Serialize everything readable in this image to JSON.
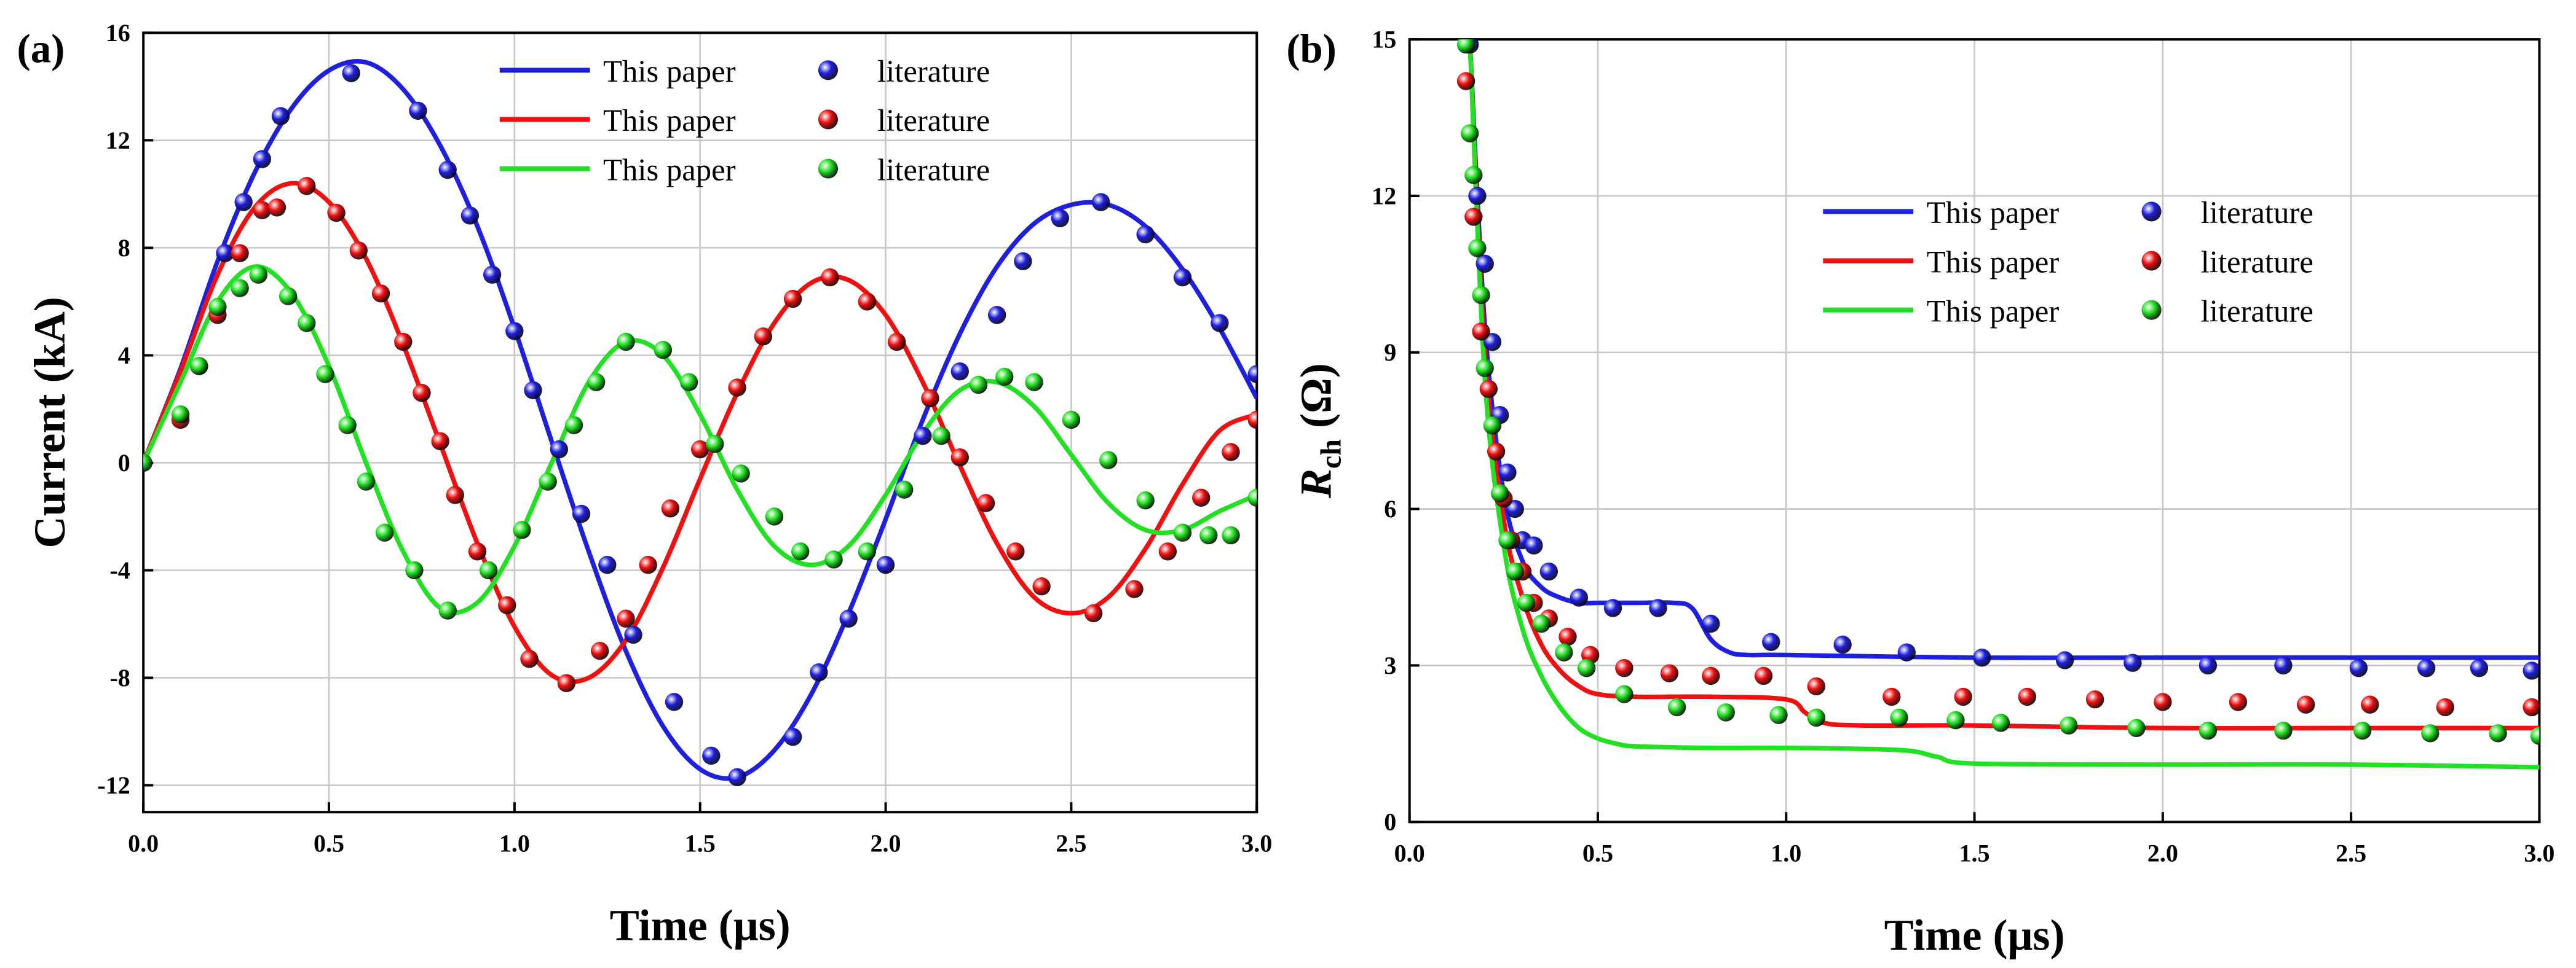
{
  "chart_data": [
    {
      "type": "line",
      "label": "(a)",
      "xlabel": "Time (μs)",
      "ylabel": [
        "Current (kA)"
      ],
      "xlim": [
        0,
        3
      ],
      "ylim": [
        -13,
        16
      ],
      "xticks": [
        {
          "value": 0,
          "label": "0.0"
        },
        {
          "value": 0.5,
          "label": "0.5"
        },
        {
          "value": 1,
          "label": "1.0"
        },
        {
          "value": 1.5,
          "label": "1.5"
        },
        {
          "value": 2,
          "label": "2.0"
        },
        {
          "value": 2.5,
          "label": "2.5"
        },
        {
          "value": 3,
          "label": "3.0"
        }
      ],
      "yticks": [
        -12,
        -8,
        -4,
        0,
        4,
        8,
        12,
        16
      ],
      "grid": true,
      "legend": "upper center",
      "series": [
        {
          "name": "This paper",
          "color": "#1f1fe0",
          "style": "line",
          "x": [
            0,
            0.1,
            0.2,
            0.3,
            0.4,
            0.5,
            0.6,
            0.7,
            0.8,
            0.9,
            1.0,
            1.1,
            1.2,
            1.3,
            1.4,
            1.5,
            1.6,
            1.7,
            1.8,
            1.9,
            2.0,
            2.1,
            2.2,
            2.3,
            2.4,
            2.5,
            2.6,
            2.7,
            2.8,
            2.9,
            3.0
          ],
          "values": [
            0,
            3.5,
            7.5,
            10.8,
            13.2,
            14.6,
            14.9,
            13.9,
            11.8,
            8.8,
            5.0,
            0.8,
            -3.3,
            -7.0,
            -9.8,
            -11.4,
            -11.7,
            -10.7,
            -8.6,
            -5.6,
            -2.1,
            1.6,
            4.8,
            7.3,
            8.9,
            9.6,
            9.6,
            8.8,
            7.2,
            5.0,
            2.4
          ]
        },
        {
          "name": "This paper",
          "color": "#f01010",
          "style": "line",
          "x": [
            0,
            0.1,
            0.2,
            0.3,
            0.4,
            0.5,
            0.6,
            0.7,
            0.8,
            0.9,
            1.0,
            1.1,
            1.2,
            1.3,
            1.4,
            1.5,
            1.6,
            1.7,
            1.8,
            1.9,
            2.0,
            2.1,
            2.2,
            2.3,
            2.4,
            2.5,
            2.6,
            2.7,
            2.8,
            2.9,
            3.0
          ],
          "values": [
            0,
            3.4,
            7.0,
            9.5,
            10.4,
            9.7,
            7.6,
            4.4,
            0.7,
            -3.0,
            -6.1,
            -7.9,
            -8.0,
            -6.6,
            -3.9,
            -0.6,
            2.6,
            5.2,
            6.7,
            6.8,
            5.5,
            3.0,
            -0.1,
            -3.0,
            -5.0,
            -5.6,
            -5.0,
            -3.2,
            -0.8,
            1.2,
            1.8
          ]
        },
        {
          "name": "This paper",
          "color": "#22e022",
          "style": "line",
          "x": [
            0,
            0.1,
            0.2,
            0.3,
            0.4,
            0.5,
            0.6,
            0.7,
            0.8,
            0.9,
            1.0,
            1.1,
            1.2,
            1.3,
            1.4,
            1.5,
            1.6,
            1.7,
            1.8,
            1.9,
            2.0,
            2.1,
            2.2,
            2.3,
            2.4,
            2.5,
            2.6,
            2.7,
            2.8,
            2.9,
            3.0
          ],
          "values": [
            0,
            3.0,
            6.0,
            7.3,
            6.3,
            3.6,
            0.0,
            -3.3,
            -5.4,
            -5.2,
            -3.1,
            0.0,
            3.0,
            4.5,
            4.0,
            1.8,
            -1.0,
            -3.1,
            -3.8,
            -3.1,
            -1.2,
            1.1,
            2.7,
            3.0,
            2.1,
            0.3,
            -1.5,
            -2.5,
            -2.5,
            -1.8,
            -1.2
          ]
        },
        {
          "name": "literature",
          "color": "#1f1fe0",
          "style": "markers",
          "x": [
            0.15,
            0.22,
            0.27,
            0.32,
            0.37,
            0.56,
            0.74,
            0.82,
            0.88,
            0.94,
            1.0,
            1.05,
            1.12,
            1.18,
            1.25,
            1.32,
            1.43,
            1.53,
            1.6,
            1.75,
            1.82,
            1.9,
            2.0,
            2.1,
            2.2,
            2.3,
            2.37,
            2.47,
            2.58,
            2.7,
            2.8,
            2.9,
            3.0
          ],
          "values": [
            3.6,
            7.8,
            9.7,
            11.3,
            12.9,
            14.5,
            13.1,
            10.9,
            9.2,
            7.0,
            4.9,
            2.7,
            0.5,
            -1.9,
            -3.8,
            -6.4,
            -8.9,
            -10.9,
            -11.7,
            -10.2,
            -7.8,
            -5.8,
            -3.8,
            1.0,
            3.4,
            5.5,
            7.5,
            9.1,
            9.7,
            8.5,
            6.9,
            5.2,
            3.3
          ]
        },
        {
          "name": "literature",
          "color": "#f01010",
          "style": "markers",
          "x": [
            0.1,
            0.15,
            0.2,
            0.26,
            0.32,
            0.36,
            0.44,
            0.52,
            0.58,
            0.64,
            0.7,
            0.75,
            0.8,
            0.84,
            0.9,
            0.98,
            1.04,
            1.14,
            1.23,
            1.3,
            1.36,
            1.42,
            1.5,
            1.6,
            1.67,
            1.75,
            1.85,
            1.95,
            2.03,
            2.12,
            2.2,
            2.27,
            2.35,
            2.42,
            2.56,
            2.67,
            2.76,
            2.85,
            2.93,
            3.0
          ],
          "values": [
            1.6,
            3.6,
            5.5,
            7.8,
            9.4,
            9.5,
            10.3,
            9.3,
            7.9,
            6.3,
            4.5,
            2.6,
            0.8,
            -1.2,
            -3.3,
            -5.3,
            -7.3,
            -8.2,
            -7.0,
            -5.8,
            -3.8,
            -1.7,
            0.5,
            2.8,
            4.7,
            6.1,
            6.9,
            6.0,
            4.5,
            2.4,
            0.2,
            -1.5,
            -3.3,
            -4.6,
            -5.6,
            -4.7,
            -3.3,
            -1.3,
            0.4,
            1.6
          ]
        },
        {
          "name": "literature",
          "color": "#22e022",
          "style": "markers",
          "x": [
            0,
            0.1,
            0.15,
            0.2,
            0.26,
            0.31,
            0.39,
            0.44,
            0.49,
            0.55,
            0.6,
            0.65,
            0.73,
            0.82,
            0.93,
            1.02,
            1.09,
            1.16,
            1.22,
            1.3,
            1.4,
            1.47,
            1.54,
            1.61,
            1.7,
            1.77,
            1.86,
            1.95,
            2.05,
            2.15,
            2.25,
            2.32,
            2.4,
            2.5,
            2.6,
            2.7,
            2.8,
            2.87,
            2.93,
            3.0
          ],
          "values": [
            0,
            1.8,
            3.6,
            5.8,
            6.5,
            7.0,
            6.2,
            5.2,
            3.3,
            1.4,
            -0.7,
            -2.6,
            -4.0,
            -5.5,
            -4.0,
            -2.5,
            -0.7,
            1.4,
            3.0,
            4.5,
            4.2,
            3.0,
            0.7,
            -0.4,
            -2.0,
            -3.3,
            -3.6,
            -3.3,
            -1.0,
            1.0,
            2.9,
            3.2,
            3.0,
            1.6,
            0.1,
            -1.4,
            -2.6,
            -2.7,
            -2.7,
            -1.3
          ]
        }
      ]
    },
    {
      "type": "line",
      "label": "(b)",
      "xlabel": "Time (μs)",
      "ylabel": [
        "R",
        "ch",
        " (Ω)"
      ],
      "xlim": [
        0,
        3
      ],
      "ylim": [
        0,
        15
      ],
      "xticks": [
        {
          "value": 0,
          "label": "0.0"
        },
        {
          "value": 0.5,
          "label": "0.5"
        },
        {
          "value": 1,
          "label": "1.0"
        },
        {
          "value": 1.5,
          "label": "1.5"
        },
        {
          "value": 2,
          "label": "2.0"
        },
        {
          "value": 2.5,
          "label": "2.5"
        },
        {
          "value": 3,
          "label": "3.0"
        }
      ],
      "yticks": [
        0,
        3,
        6,
        9,
        12,
        15
      ],
      "grid": true,
      "legend": "upper right",
      "series": [
        {
          "name": "This paper",
          "color": "#1f1fe0",
          "style": "line",
          "x": [
            0.16,
            0.2,
            0.25,
            0.3,
            0.35,
            0.4,
            0.45,
            0.5,
            0.6,
            0.7,
            0.75,
            0.8,
            0.85,
            0.9,
            1.0,
            1.5,
            2.0,
            2.5,
            3.0
          ],
          "values": [
            15,
            9.5,
            6.3,
            5.0,
            4.5,
            4.3,
            4.2,
            4.2,
            4.2,
            4.2,
            4.1,
            3.5,
            3.25,
            3.2,
            3.2,
            3.15,
            3.15,
            3.15,
            3.15
          ]
        },
        {
          "name": "This paper",
          "color": "#f01010",
          "style": "line",
          "x": [
            0.16,
            0.2,
            0.25,
            0.3,
            0.35,
            0.4,
            0.45,
            0.5,
            0.6,
            0.8,
            1.0,
            1.05,
            1.1,
            1.2,
            1.5,
            2.0,
            2.5,
            3.0
          ],
          "values": [
            15,
            9.0,
            5.8,
            4.3,
            3.4,
            2.9,
            2.6,
            2.45,
            2.4,
            2.4,
            2.35,
            2.1,
            1.9,
            1.85,
            1.85,
            1.8,
            1.8,
            1.8
          ]
        },
        {
          "name": "This paper",
          "color": "#22e022",
          "style": "line",
          "x": [
            0.16,
            0.2,
            0.25,
            0.3,
            0.35,
            0.4,
            0.45,
            0.5,
            0.55,
            0.6,
            0.8,
            1.0,
            1.3,
            1.4,
            1.5,
            2.0,
            2.5,
            3.0
          ],
          "values": [
            15,
            8.5,
            5.3,
            3.7,
            2.8,
            2.2,
            1.8,
            1.6,
            1.5,
            1.45,
            1.42,
            1.42,
            1.38,
            1.25,
            1.12,
            1.1,
            1.1,
            1.05
          ]
        },
        {
          "name": "literature",
          "color": "#1f1fe0",
          "style": "markers",
          "x": [
            0.16,
            0.18,
            0.2,
            0.22,
            0.24,
            0.26,
            0.28,
            0.3,
            0.33,
            0.37,
            0.45,
            0.54,
            0.66,
            0.8,
            0.96,
            1.15,
            1.32,
            1.52,
            1.74,
            1.92,
            2.12,
            2.32,
            2.52,
            2.7,
            2.84,
            2.98
          ],
          "values": [
            14.9,
            12,
            10.7,
            9.2,
            7.8,
            6.7,
            6.0,
            5.4,
            5.3,
            4.8,
            4.3,
            4.1,
            4.1,
            3.8,
            3.45,
            3.4,
            3.25,
            3.15,
            3.1,
            3.05,
            3.0,
            3.0,
            2.95,
            2.95,
            2.95,
            2.9
          ]
        },
        {
          "name": "literature",
          "color": "#f01010",
          "style": "markers",
          "x": [
            0.15,
            0.17,
            0.19,
            0.21,
            0.23,
            0.25,
            0.27,
            0.3,
            0.33,
            0.37,
            0.42,
            0.48,
            0.57,
            0.69,
            0.8,
            0.94,
            1.08,
            1.28,
            1.47,
            1.64,
            1.82,
            2.0,
            2.2,
            2.38,
            2.55,
            2.75,
            2.98
          ],
          "values": [
            14.2,
            11.6,
            9.4,
            8.3,
            7.1,
            6.2,
            5.4,
            4.8,
            4.2,
            3.9,
            3.55,
            3.2,
            2.95,
            2.85,
            2.8,
            2.8,
            2.6,
            2.4,
            2.4,
            2.4,
            2.35,
            2.3,
            2.3,
            2.25,
            2.25,
            2.2,
            2.2
          ]
        },
        {
          "name": "literature",
          "color": "#22e022",
          "style": "markers",
          "x": [
            0.15,
            0.16,
            0.17,
            0.18,
            0.19,
            0.2,
            0.22,
            0.24,
            0.26,
            0.28,
            0.31,
            0.35,
            0.41,
            0.47,
            0.57,
            0.71,
            0.84,
            0.98,
            1.08,
            1.3,
            1.45,
            1.57,
            1.75,
            1.93,
            2.12,
            2.32,
            2.53,
            2.71,
            2.89,
            3.0
          ],
          "values": [
            14.9,
            13.2,
            12.4,
            11,
            10.1,
            8.7,
            7.6,
            6.3,
            5.4,
            4.8,
            4.2,
            3.8,
            3.25,
            2.95,
            2.45,
            2.2,
            2.1,
            2.05,
            2.0,
            2.0,
            1.95,
            1.9,
            1.85,
            1.8,
            1.75,
            1.75,
            1.75,
            1.7,
            1.7,
            1.65
          ]
        }
      ]
    }
  ]
}
